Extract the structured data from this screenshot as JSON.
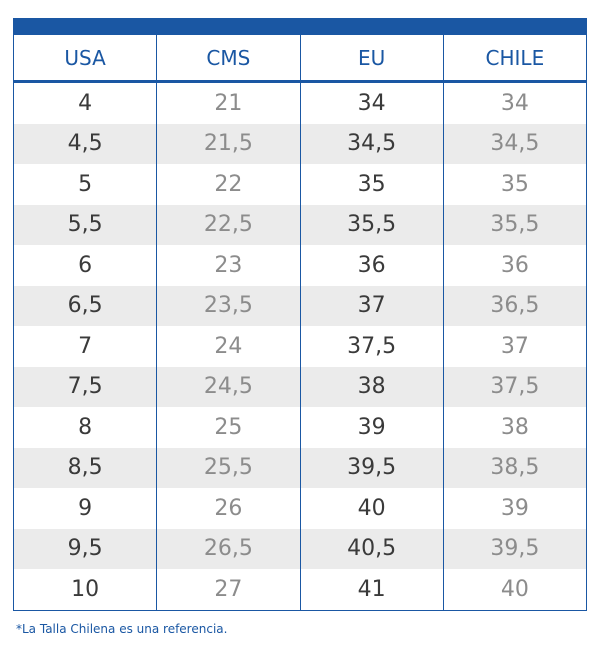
{
  "table": {
    "header": [
      "USA",
      "CMS",
      "EU",
      "CHILE"
    ],
    "rows": [
      [
        "4",
        "21",
        "34",
        "34"
      ],
      [
        "4,5",
        "21,5",
        "34,5",
        "34,5"
      ],
      [
        "5",
        "22",
        "35",
        "35"
      ],
      [
        "5,5",
        "22,5",
        "35,5",
        "35,5"
      ],
      [
        "6",
        "23",
        "36",
        "36"
      ],
      [
        "6,5",
        "23,5",
        "37",
        "36,5"
      ],
      [
        "7",
        "24",
        "37,5",
        "37"
      ],
      [
        "7,5",
        "24,5",
        "38",
        "37,5"
      ],
      [
        "8",
        "25",
        "39",
        "38"
      ],
      [
        "8,5",
        "25,5",
        "39,5",
        "38,5"
      ],
      [
        "9",
        "26",
        "40",
        "39"
      ],
      [
        "9,5",
        "26,5",
        "40,5",
        "39,5"
      ],
      [
        "10",
        "27",
        "41",
        "40"
      ]
    ]
  },
  "footnote": "*La Talla Chilena es una referencia."
}
